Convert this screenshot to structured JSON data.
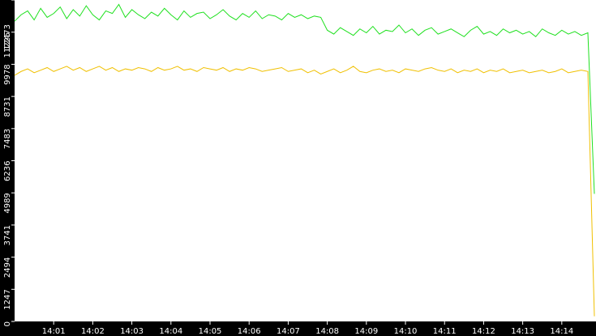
{
  "chart_data": {
    "type": "line",
    "categories": [
      null,
      null,
      null,
      null,
      null,
      null,
      "14:01",
      null,
      null,
      null,
      null,
      null,
      "14:02",
      null,
      null,
      null,
      null,
      null,
      "14:03",
      null,
      null,
      null,
      null,
      null,
      "14:04",
      null,
      null,
      null,
      null,
      null,
      "14:05",
      null,
      null,
      null,
      null,
      null,
      "14:06",
      null,
      null,
      null,
      null,
      null,
      "14:07",
      null,
      null,
      null,
      null,
      null,
      "14:08",
      null,
      null,
      null,
      null,
      null,
      "14:09",
      null,
      null,
      null,
      null,
      null,
      "14:10",
      null,
      null,
      null,
      null,
      null,
      "14:11",
      null,
      null,
      null,
      null,
      null,
      "14:12",
      null,
      null,
      null,
      null,
      null,
      "14:13",
      null,
      null,
      null,
      null,
      null,
      "14:14",
      null,
      null,
      null,
      null,
      null
    ],
    "series": [
      {
        "color": "#1fe01f",
        "values": [
          11650,
          11900,
          12050,
          11700,
          12150,
          11800,
          11950,
          12200,
          11750,
          12100,
          11850,
          12250,
          11900,
          11700,
          12050,
          11950,
          12300,
          11800,
          12100,
          11900,
          11750,
          12000,
          11850,
          12150,
          11900,
          11700,
          12050,
          11800,
          11950,
          12000,
          11750,
          11900,
          12100,
          11850,
          11700,
          11950,
          11800,
          12050,
          11750,
          11900,
          11850,
          11700,
          11950,
          11800,
          11900,
          11750,
          11850,
          11800,
          11300,
          11150,
          11400,
          11250,
          11100,
          11350,
          11200,
          11450,
          11150,
          11300,
          11250,
          11500,
          11200,
          11350,
          11100,
          11300,
          11400,
          11150,
          11250,
          11350,
          11200,
          11050,
          11300,
          11450,
          11150,
          11250,
          11100,
          11350,
          11200,
          11300,
          11150,
          11250,
          11050,
          11350,
          11200,
          11100,
          11300,
          11150,
          11250,
          11100,
          11200,
          4950
        ]
      },
      {
        "color": "#f0c000",
        "values": [
          9550,
          9700,
          9800,
          9650,
          9750,
          9850,
          9700,
          9800,
          9900,
          9750,
          9850,
          9700,
          9800,
          9900,
          9750,
          9850,
          9700,
          9800,
          9750,
          9850,
          9800,
          9700,
          9850,
          9750,
          9800,
          9900,
          9750,
          9800,
          9700,
          9850,
          9800,
          9750,
          9850,
          9700,
          9800,
          9750,
          9850,
          9800,
          9700,
          9750,
          9800,
          9850,
          9700,
          9750,
          9800,
          9650,
          9750,
          9600,
          9700,
          9800,
          9650,
          9750,
          9900,
          9700,
          9650,
          9750,
          9800,
          9700,
          9750,
          9650,
          9800,
          9750,
          9700,
          9800,
          9850,
          9750,
          9700,
          9800,
          9650,
          9750,
          9700,
          9800,
          9650,
          9750,
          9700,
          9800,
          9650,
          9700,
          9750,
          9650,
          9700,
          9750,
          9650,
          9700,
          9800,
          9650,
          9700,
          9750,
          9700,
          200
        ]
      }
    ],
    "ylim": [
      0,
      12473
    ],
    "yticks": [
      0,
      1247,
      2494,
      3741,
      4989,
      6236,
      7483,
      8731,
      9978,
      11225,
      12473
    ]
  }
}
